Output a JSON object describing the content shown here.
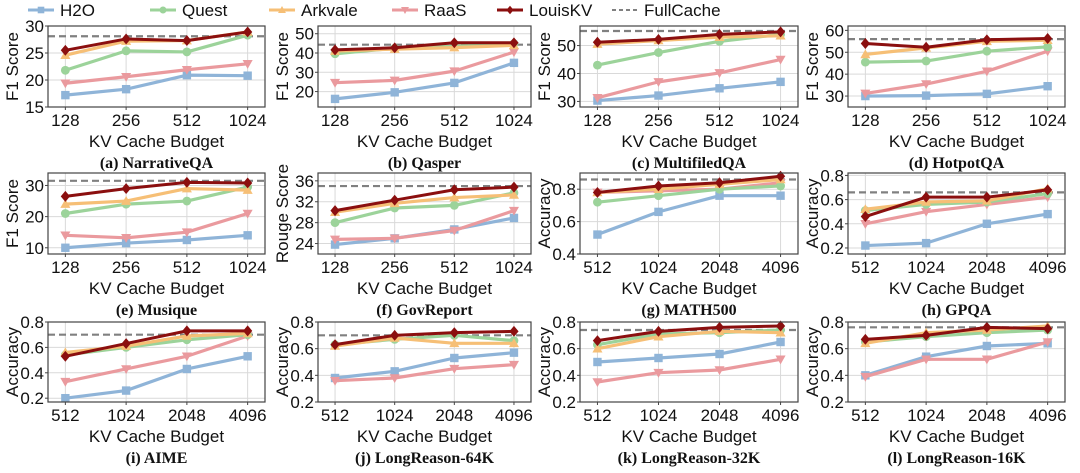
{
  "legend": {
    "entries": [
      {
        "name": "H2O",
        "color": "#8fb4d8",
        "marker": "square"
      },
      {
        "name": "Quest",
        "color": "#9cd39a",
        "marker": "circle"
      },
      {
        "name": "Arkvale",
        "color": "#f6bf76",
        "marker": "triangle-up"
      },
      {
        "name": "RaaS",
        "color": "#ea9a9e",
        "marker": "triangle-down"
      },
      {
        "name": "LouisKV",
        "color": "#8b0f0f",
        "marker": "diamond"
      },
      {
        "name": "FullCache",
        "color": "#808080",
        "marker": "dashed"
      }
    ]
  },
  "chart_data": [
    {
      "type": "line",
      "caption": "(a) NarrativeQA",
      "xlabel": "KV Cache Budget",
      "ylabel": "F1 Score",
      "categories": [
        "128",
        "256",
        "512",
        "1024"
      ],
      "ylim": [
        15,
        30
      ],
      "yticks": [
        15,
        20,
        25,
        30
      ],
      "grid": true,
      "series": [
        {
          "name": "H2O",
          "values": [
            17.2,
            18.3,
            20.9,
            20.8
          ]
        },
        {
          "name": "Quest",
          "values": [
            21.8,
            25.4,
            25.2,
            28.3
          ]
        },
        {
          "name": "Arkvale",
          "values": [
            24.6,
            27.2,
            27.3,
            28.9
          ]
        },
        {
          "name": "RaaS",
          "values": [
            19.4,
            20.6,
            21.9,
            23.0
          ]
        },
        {
          "name": "LouisKV",
          "values": [
            25.5,
            27.6,
            27.3,
            28.9
          ]
        }
      ],
      "fullcache": 28.1
    },
    {
      "type": "line",
      "caption": "(b) Qasper",
      "xlabel": "KV Cache Budget",
      "ylabel": "F1 Score",
      "categories": [
        "128",
        "256",
        "512",
        "1024"
      ],
      "ylim": [
        12,
        54
      ],
      "yticks": [
        20,
        30,
        40,
        50
      ],
      "grid": true,
      "series": [
        {
          "name": "H2O",
          "values": [
            16.2,
            19.6,
            24.5,
            34.9
          ]
        },
        {
          "name": "Quest",
          "values": [
            39.6,
            42.5,
            43.5,
            44.8
          ]
        },
        {
          "name": "Arkvale",
          "values": [
            41.0,
            42.0,
            42.8,
            44.0
          ]
        },
        {
          "name": "RaaS",
          "values": [
            24.6,
            25.8,
            30.6,
            40.5
          ]
        },
        {
          "name": "LouisKV",
          "values": [
            41.6,
            42.7,
            45.3,
            45.3
          ]
        }
      ],
      "fullcache": 44.3
    },
    {
      "type": "line",
      "caption": "(c) MultifiledQA",
      "xlabel": "KV Cache Budget",
      "ylabel": "F1 Score",
      "categories": [
        "128",
        "256",
        "512",
        "1024"
      ],
      "ylim": [
        28,
        57
      ],
      "yticks": [
        30,
        40,
        50
      ],
      "grid": true,
      "series": [
        {
          "name": "H2O",
          "values": [
            30.3,
            32.1,
            34.7,
            37.0
          ]
        },
        {
          "name": "Quest",
          "values": [
            43.0,
            47.5,
            51.5,
            54.0
          ]
        },
        {
          "name": "Arkvale",
          "values": [
            50.5,
            51.8,
            53.0,
            53.5
          ]
        },
        {
          "name": "RaaS",
          "values": [
            31.3,
            37.0,
            40.2,
            45.0
          ]
        },
        {
          "name": "LouisKV",
          "values": [
            51.2,
            52.2,
            54.0,
            54.9
          ]
        }
      ],
      "fullcache": 55.2
    },
    {
      "type": "line",
      "caption": "(d) HotpotQA",
      "xlabel": "KV Cache Budget",
      "ylabel": "F1 Score",
      "categories": [
        "128",
        "256",
        "512",
        "1024"
      ],
      "ylim": [
        25,
        62
      ],
      "yticks": [
        30,
        40,
        50,
        60
      ],
      "grid": true,
      "series": [
        {
          "name": "H2O",
          "values": [
            30.0,
            30.2,
            31.0,
            34.5
          ]
        },
        {
          "name": "Quest",
          "values": [
            45.5,
            46.0,
            50.5,
            52.5
          ]
        },
        {
          "name": "Arkvale",
          "values": [
            49.0,
            52.0,
            55.0,
            55.5
          ]
        },
        {
          "name": "RaaS",
          "values": [
            31.2,
            35.5,
            41.3,
            50.5
          ]
        },
        {
          "name": "LouisKV",
          "values": [
            54.0,
            52.3,
            55.7,
            56.3
          ]
        }
      ],
      "fullcache": 56.0
    },
    {
      "type": "line",
      "caption": "(e) Musique",
      "xlabel": "KV Cache Budget",
      "ylabel": "F1 Score",
      "categories": [
        "128",
        "256",
        "512",
        "1024"
      ],
      "ylim": [
        8,
        34
      ],
      "yticks": [
        10,
        20,
        30
      ],
      "grid": true,
      "series": [
        {
          "name": "H2O",
          "values": [
            10.0,
            11.5,
            12.5,
            14.0
          ]
        },
        {
          "name": "Quest",
          "values": [
            21.0,
            24.0,
            25.0,
            29.5
          ]
        },
        {
          "name": "Arkvale",
          "values": [
            24.0,
            25.0,
            29.0,
            28.5
          ]
        },
        {
          "name": "RaaS",
          "values": [
            14.0,
            13.2,
            15.0,
            21.0
          ]
        },
        {
          "name": "LouisKV",
          "values": [
            26.5,
            29.0,
            31.0,
            30.8
          ]
        }
      ],
      "fullcache": 31.5
    },
    {
      "type": "line",
      "caption": "(f) GovReport",
      "xlabel": "KV Cache Budget",
      "ylabel": "Rouge Score",
      "categories": [
        "128",
        "256",
        "512",
        "1024"
      ],
      "ylim": [
        22,
        37.5
      ],
      "yticks": [
        24,
        28,
        32,
        36
      ],
      "grid": true,
      "series": [
        {
          "name": "H2O",
          "values": [
            23.8,
            25.0,
            26.7,
            28.9
          ]
        },
        {
          "name": "Quest",
          "values": [
            28.0,
            30.8,
            31.3,
            33.7
          ]
        },
        {
          "name": "Arkvale",
          "values": [
            30.0,
            31.7,
            32.8,
            33.3
          ]
        },
        {
          "name": "RaaS",
          "values": [
            24.8,
            25.0,
            26.5,
            30.3
          ]
        },
        {
          "name": "LouisKV",
          "values": [
            30.3,
            32.3,
            34.3,
            34.8
          ]
        }
      ],
      "fullcache": 35.0
    },
    {
      "type": "line",
      "caption": "(g) MATH500",
      "xlabel": "KV Cache Budget",
      "ylabel": "Accuracy",
      "categories": [
        "512",
        "1024",
        "2048",
        "4096"
      ],
      "ylim": [
        0.4,
        0.9
      ],
      "yticks": [
        0.4,
        0.6,
        0.8
      ],
      "grid": true,
      "series": [
        {
          "name": "H2O",
          "values": [
            0.52,
            0.66,
            0.76,
            0.76
          ]
        },
        {
          "name": "Quest",
          "values": [
            0.72,
            0.76,
            0.8,
            0.82
          ]
        },
        {
          "name": "Arkvale",
          "values": [
            0.78,
            0.8,
            0.83,
            0.86
          ]
        },
        {
          "name": "RaaS",
          "values": [
            0.78,
            0.79,
            0.8,
            0.84
          ]
        },
        {
          "name": "LouisKV",
          "values": [
            0.78,
            0.82,
            0.84,
            0.88
          ]
        }
      ],
      "fullcache": 0.86
    },
    {
      "type": "line",
      "caption": "(h) GPQA",
      "xlabel": "KV Cache Budget",
      "ylabel": "Accuracy",
      "categories": [
        "512",
        "1024",
        "2048",
        "4096"
      ],
      "ylim": [
        0.15,
        0.82
      ],
      "yticks": [
        0.2,
        0.4,
        0.6,
        0.8
      ],
      "grid": true,
      "series": [
        {
          "name": "H2O",
          "values": [
            0.22,
            0.24,
            0.4,
            0.48
          ]
        },
        {
          "name": "Quest",
          "values": [
            0.51,
            0.56,
            0.58,
            0.65
          ]
        },
        {
          "name": "Arkvale",
          "values": [
            0.52,
            0.58,
            0.59,
            0.69
          ]
        },
        {
          "name": "RaaS",
          "values": [
            0.4,
            0.5,
            0.56,
            0.62
          ]
        },
        {
          "name": "LouisKV",
          "values": [
            0.46,
            0.62,
            0.62,
            0.68
          ]
        }
      ],
      "fullcache": 0.66
    },
    {
      "type": "line",
      "caption": "(i) AIME",
      "xlabel": "KV Cache Budget",
      "ylabel": "Accuracy",
      "categories": [
        "512",
        "1024",
        "2048",
        "4096"
      ],
      "ylim": [
        0.17,
        0.8
      ],
      "yticks": [
        0.2,
        0.4,
        0.6,
        0.8
      ],
      "grid": true,
      "series": [
        {
          "name": "H2O",
          "values": [
            0.2,
            0.26,
            0.43,
            0.53
          ]
        },
        {
          "name": "Quest",
          "values": [
            0.54,
            0.6,
            0.66,
            0.7
          ]
        },
        {
          "name": "Arkvale",
          "values": [
            0.56,
            0.61,
            0.69,
            0.71
          ]
        },
        {
          "name": "RaaS",
          "values": [
            0.33,
            0.43,
            0.53,
            0.69
          ]
        },
        {
          "name": "LouisKV",
          "values": [
            0.53,
            0.63,
            0.73,
            0.73
          ]
        }
      ],
      "fullcache": 0.7
    },
    {
      "type": "line",
      "caption": "(j) LongReason-64K",
      "xlabel": "KV Cache Budget",
      "ylabel": "Accuracy",
      "categories": [
        "512",
        "1024",
        "2048",
        "4096"
      ],
      "ylim": [
        0.2,
        0.8
      ],
      "yticks": [
        0.2,
        0.4,
        0.6,
        0.8
      ],
      "grid": true,
      "series": [
        {
          "name": "H2O",
          "values": [
            0.38,
            0.43,
            0.53,
            0.57
          ]
        },
        {
          "name": "Quest",
          "values": [
            0.63,
            0.67,
            0.7,
            0.66
          ]
        },
        {
          "name": "Arkvale",
          "values": [
            0.62,
            0.68,
            0.64,
            0.64
          ]
        },
        {
          "name": "RaaS",
          "values": [
            0.36,
            0.38,
            0.45,
            0.48
          ]
        },
        {
          "name": "LouisKV",
          "values": [
            0.63,
            0.7,
            0.72,
            0.73
          ]
        }
      ],
      "fullcache": 0.7
    },
    {
      "type": "line",
      "caption": "(k) LongReason-32K",
      "xlabel": "KV Cache Budget",
      "ylabel": "Accuracy",
      "categories": [
        "512",
        "1024",
        "2048",
        "4096"
      ],
      "ylim": [
        0.2,
        0.8
      ],
      "yticks": [
        0.2,
        0.4,
        0.6,
        0.8
      ],
      "grid": true,
      "series": [
        {
          "name": "H2O",
          "values": [
            0.5,
            0.53,
            0.56,
            0.65
          ]
        },
        {
          "name": "Quest",
          "values": [
            0.63,
            0.71,
            0.72,
            0.74
          ]
        },
        {
          "name": "Arkvale",
          "values": [
            0.6,
            0.69,
            0.73,
            0.72
          ]
        },
        {
          "name": "RaaS",
          "values": [
            0.35,
            0.42,
            0.44,
            0.52
          ]
        },
        {
          "name": "LouisKV",
          "values": [
            0.66,
            0.73,
            0.76,
            0.77
          ]
        }
      ],
      "fullcache": 0.74
    },
    {
      "type": "line",
      "caption": "(l) LongReason-16K",
      "xlabel": "KV Cache Budget",
      "ylabel": "Accuracy",
      "categories": [
        "512",
        "1024",
        "2048",
        "4096"
      ],
      "ylim": [
        0.2,
        0.8
      ],
      "yticks": [
        0.2,
        0.4,
        0.6,
        0.8
      ],
      "grid": true,
      "series": [
        {
          "name": "H2O",
          "values": [
            0.4,
            0.54,
            0.62,
            0.64
          ]
        },
        {
          "name": "Quest",
          "values": [
            0.65,
            0.69,
            0.72,
            0.74
          ]
        },
        {
          "name": "Arkvale",
          "values": [
            0.64,
            0.72,
            0.74,
            0.77
          ]
        },
        {
          "name": "RaaS",
          "values": [
            0.39,
            0.52,
            0.52,
            0.65
          ]
        },
        {
          "name": "LouisKV",
          "values": [
            0.67,
            0.7,
            0.76,
            0.75
          ]
        }
      ],
      "fullcache": 0.76
    }
  ]
}
